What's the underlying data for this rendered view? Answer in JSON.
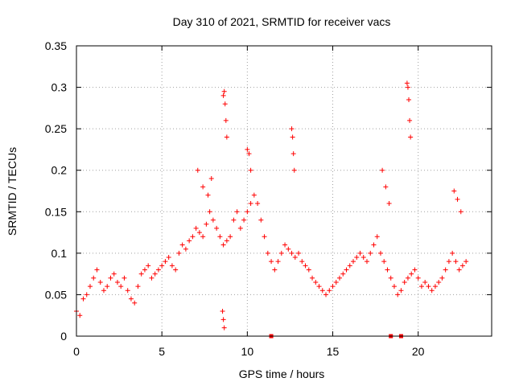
{
  "chart_data": {
    "type": "scatter",
    "title": "Day 310 of 2021, SRMTID for receiver vacs",
    "xlabel": "GPS time / hours",
    "ylabel": "SRMTID / TECUs",
    "xlim": [
      0,
      24.3
    ],
    "ylim": [
      0,
      0.35
    ],
    "grid": true,
    "x_ticks": [
      0,
      5,
      10,
      15,
      20
    ],
    "x_tick_labels": [
      "0",
      "5",
      "10",
      "15",
      "20"
    ],
    "y_ticks": [
      0,
      0.05,
      0.1,
      0.15,
      0.2,
      0.25,
      0.3,
      0.35
    ],
    "y_tick_labels": [
      "0",
      "0.05",
      "0.1",
      "0.15",
      "0.2",
      "0.25",
      "0.3",
      "0.35"
    ],
    "marker_color": "#ff0000",
    "series": [
      {
        "name": "SRMTID",
        "marker": "+",
        "x": [
          0.0,
          0.2,
          0.4,
          0.6,
          0.8,
          1.0,
          1.2,
          1.4,
          1.6,
          1.8,
          2.0,
          2.2,
          2.4,
          2.6,
          2.8,
          3.0,
          3.2,
          3.4,
          3.6,
          3.8,
          4.0,
          4.2,
          4.4,
          4.6,
          4.8,
          5.0,
          5.2,
          5.4,
          5.6,
          5.8,
          6.0,
          6.2,
          6.4,
          6.6,
          6.8,
          7.0,
          7.2,
          7.4,
          7.6,
          7.8,
          8.0,
          8.2,
          8.4,
          8.6,
          8.8,
          9.0,
          9.2,
          9.4,
          9.6,
          9.8,
          10.0,
          10.2,
          10.4,
          10.6,
          10.8,
          11.0,
          11.2,
          11.4,
          11.6,
          11.8,
          12.0,
          12.2,
          12.4,
          12.6,
          12.8,
          13.0,
          13.2,
          13.4,
          13.6,
          13.8,
          14.0,
          14.2,
          14.4,
          14.6,
          14.8,
          15.0,
          15.2,
          15.4,
          15.6,
          15.8,
          16.0,
          16.2,
          16.4,
          16.6,
          16.8,
          17.0,
          17.2,
          17.4,
          17.6,
          17.8,
          18.0,
          18.2,
          18.4,
          18.6,
          18.8,
          19.0,
          19.2,
          19.4,
          19.6,
          19.8,
          20.0,
          20.2,
          20.4,
          20.6,
          20.8,
          21.0,
          21.2,
          21.4,
          21.6,
          21.8,
          22.0,
          22.2,
          22.4,
          22.6,
          22.8,
          8.6,
          8.65,
          8.7,
          8.75,
          8.8,
          8.55,
          8.6,
          8.65,
          10.0,
          10.1,
          10.2,
          12.6,
          12.65,
          12.7,
          12.75,
          19.35,
          19.4,
          19.45,
          19.5,
          19.55,
          7.1,
          7.4,
          7.7,
          7.9,
          17.9,
          18.1,
          18.3,
          22.1,
          22.3,
          22.5
        ],
        "y": [
          0.03,
          0.025,
          0.045,
          0.05,
          0.06,
          0.07,
          0.08,
          0.065,
          0.055,
          0.06,
          0.07,
          0.075,
          0.065,
          0.06,
          0.07,
          0.055,
          0.045,
          0.04,
          0.06,
          0.075,
          0.08,
          0.085,
          0.07,
          0.075,
          0.08,
          0.085,
          0.09,
          0.095,
          0.085,
          0.08,
          0.1,
          0.11,
          0.105,
          0.115,
          0.12,
          0.13,
          0.125,
          0.12,
          0.135,
          0.15,
          0.14,
          0.13,
          0.12,
          0.11,
          0.115,
          0.12,
          0.14,
          0.15,
          0.13,
          0.14,
          0.15,
          0.16,
          0.17,
          0.16,
          0.14,
          0.12,
          0.1,
          0.09,
          0.08,
          0.09,
          0.1,
          0.11,
          0.105,
          0.1,
          0.095,
          0.1,
          0.09,
          0.085,
          0.08,
          0.07,
          0.065,
          0.06,
          0.055,
          0.05,
          0.055,
          0.06,
          0.065,
          0.07,
          0.075,
          0.08,
          0.085,
          0.09,
          0.095,
          0.1,
          0.095,
          0.09,
          0.1,
          0.11,
          0.12,
          0.1,
          0.09,
          0.08,
          0.07,
          0.06,
          0.05,
          0.055,
          0.065,
          0.07,
          0.075,
          0.08,
          0.07,
          0.06,
          0.065,
          0.06,
          0.055,
          0.06,
          0.065,
          0.07,
          0.08,
          0.09,
          0.1,
          0.09,
          0.08,
          0.085,
          0.09,
          0.29,
          0.295,
          0.28,
          0.26,
          0.24,
          0.03,
          0.02,
          0.01,
          0.225,
          0.22,
          0.2,
          0.25,
          0.24,
          0.22,
          0.2,
          0.305,
          0.3,
          0.285,
          0.26,
          0.24,
          0.2,
          0.18,
          0.17,
          0.19,
          0.2,
          0.18,
          0.16,
          0.175,
          0.165,
          0.15
        ]
      }
    ],
    "markers_on_axis": [
      {
        "x": 11.4,
        "y": 0
      },
      {
        "x": 18.4,
        "y": 0
      },
      {
        "x": 19.0,
        "y": 0
      }
    ]
  }
}
